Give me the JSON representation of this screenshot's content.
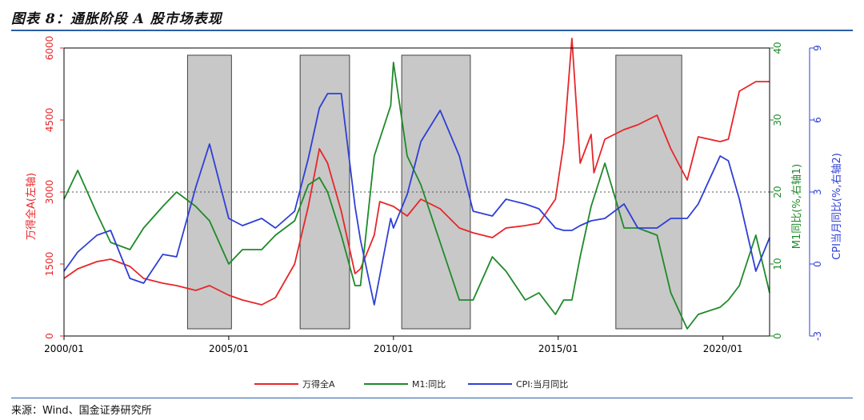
{
  "figure": {
    "title": "图表 8：通胀阶段 A 股市场表现",
    "source": "来源：Wind、国金证券研究所"
  },
  "chart_data": {
    "type": "line",
    "x_range": [
      "2000-01",
      "2021-06"
    ],
    "x_ticks": [
      "2000/01",
      "2005/01",
      "2010/01",
      "2015/01",
      "2020/01"
    ],
    "y_left": {
      "label": "万得全A(左轴)",
      "range": [
        0,
        6000
      ],
      "ticks": [
        0,
        1500,
        3000,
        4500,
        6000
      ],
      "color": "#e8262a"
    },
    "y_right1": {
      "label": "M1同比(%,右轴1)",
      "range": [
        0,
        40
      ],
      "ticks": [
        0,
        10,
        20,
        30,
        40
      ],
      "color": "#1f8a2a"
    },
    "y_right2": {
      "label": "CPI当月同比(%,右轴2)",
      "range": [
        -3,
        9
      ],
      "ticks": [
        -3,
        0,
        3,
        6,
        9
      ],
      "color": "#2f3fd6"
    },
    "reference_line": {
      "axis": "y_right1",
      "value": 20,
      "style": "dotted"
    },
    "shaded_periods": [
      [
        "2003-10",
        "2005-02"
      ],
      [
        "2007-03",
        "2008-09"
      ],
      [
        "2010-04",
        "2012-05"
      ],
      [
        "2016-10",
        "2018-10"
      ]
    ],
    "legend": {
      "position": "bottom-center",
      "entries": [
        "万得全A",
        "M1:同比",
        "CPI:当月同比"
      ]
    },
    "grid": false,
    "series": [
      {
        "name": "万得全A",
        "axis": "y_left",
        "color": "#e8262a",
        "points": [
          [
            "2000-01",
            1200
          ],
          [
            "2000-06",
            1400
          ],
          [
            "2001-01",
            1550
          ],
          [
            "2001-06",
            1600
          ],
          [
            "2002-01",
            1450
          ],
          [
            "2002-06",
            1200
          ],
          [
            "2003-01",
            1100
          ],
          [
            "2003-06",
            1050
          ],
          [
            "2004-01",
            950
          ],
          [
            "2004-06",
            1050
          ],
          [
            "2005-01",
            850
          ],
          [
            "2005-06",
            750
          ],
          [
            "2006-01",
            650
          ],
          [
            "2006-06",
            800
          ],
          [
            "2007-01",
            1500
          ],
          [
            "2007-06",
            2700
          ],
          [
            "2007-10",
            3900
          ],
          [
            "2008-01",
            3600
          ],
          [
            "2008-06",
            2600
          ],
          [
            "2008-11",
            1300
          ],
          [
            "2009-01",
            1400
          ],
          [
            "2009-06",
            2100
          ],
          [
            "2009-08",
            2800
          ],
          [
            "2010-01",
            2700
          ],
          [
            "2010-06",
            2500
          ],
          [
            "2010-11",
            2850
          ],
          [
            "2011-06",
            2650
          ],
          [
            "2012-01",
            2250
          ],
          [
            "2012-06",
            2150
          ],
          [
            "2013-01",
            2050
          ],
          [
            "2013-06",
            2250
          ],
          [
            "2014-01",
            2300
          ],
          [
            "2014-06",
            2350
          ],
          [
            "2014-12",
            2850
          ],
          [
            "2015-03",
            4000
          ],
          [
            "2015-06",
            6200
          ],
          [
            "2015-09",
            3600
          ],
          [
            "2016-01",
            4200
          ],
          [
            "2016-02",
            3400
          ],
          [
            "2016-06",
            4100
          ],
          [
            "2017-01",
            4300
          ],
          [
            "2017-06",
            4400
          ],
          [
            "2018-01",
            4600
          ],
          [
            "2018-06",
            3900
          ],
          [
            "2018-12",
            3250
          ],
          [
            "2019-04",
            4150
          ],
          [
            "2019-12",
            4050
          ],
          [
            "2020-03",
            4100
          ],
          [
            "2020-07",
            5100
          ],
          [
            "2021-01",
            5300
          ],
          [
            "2021-06",
            5300
          ]
        ]
      },
      {
        "name": "M1:同比",
        "axis": "y_right1",
        "color": "#1f8a2a",
        "points": [
          [
            "2000-01",
            19
          ],
          [
            "2000-06",
            23
          ],
          [
            "2001-01",
            17
          ],
          [
            "2001-06",
            13
          ],
          [
            "2002-01",
            12
          ],
          [
            "2002-06",
            15
          ],
          [
            "2003-01",
            18
          ],
          [
            "2003-06",
            20
          ],
          [
            "2004-01",
            18
          ],
          [
            "2004-06",
            16
          ],
          [
            "2005-01",
            10
          ],
          [
            "2005-06",
            12
          ],
          [
            "2006-01",
            12
          ],
          [
            "2006-06",
            14
          ],
          [
            "2007-01",
            16
          ],
          [
            "2007-06",
            21
          ],
          [
            "2007-10",
            22
          ],
          [
            "2008-01",
            20
          ],
          [
            "2008-06",
            14
          ],
          [
            "2008-11",
            7
          ],
          [
            "2009-01",
            7
          ],
          [
            "2009-06",
            25
          ],
          [
            "2009-12",
            32
          ],
          [
            "2010-01",
            38
          ],
          [
            "2010-06",
            25
          ],
          [
            "2010-11",
            21
          ],
          [
            "2011-06",
            13
          ],
          [
            "2012-01",
            5
          ],
          [
            "2012-06",
            5
          ],
          [
            "2013-01",
            11
          ],
          [
            "2013-06",
            9
          ],
          [
            "2014-01",
            5
          ],
          [
            "2014-06",
            6
          ],
          [
            "2014-12",
            3
          ],
          [
            "2015-03",
            5
          ],
          [
            "2015-06",
            5
          ],
          [
            "2015-09",
            11
          ],
          [
            "2016-01",
            18
          ],
          [
            "2016-06",
            24
          ],
          [
            "2017-01",
            15
          ],
          [
            "2017-06",
            15
          ],
          [
            "2018-01",
            14
          ],
          [
            "2018-06",
            6
          ],
          [
            "2018-12",
            1
          ],
          [
            "2019-04",
            3
          ],
          [
            "2019-12",
            4
          ],
          [
            "2020-03",
            5
          ],
          [
            "2020-07",
            7
          ],
          [
            "2021-01",
            14
          ],
          [
            "2021-06",
            6
          ]
        ]
      },
      {
        "name": "CPI:当月同比",
        "axis": "y_right2",
        "color": "#2f3fd6",
        "points": [
          [
            "2000-01",
            -0.3
          ],
          [
            "2000-06",
            0.5
          ],
          [
            "2001-01",
            1.2
          ],
          [
            "2001-06",
            1.4
          ],
          [
            "2002-01",
            -0.6
          ],
          [
            "2002-06",
            -0.8
          ],
          [
            "2003-01",
            0.4
          ],
          [
            "2003-06",
            0.3
          ],
          [
            "2004-01",
            3.2
          ],
          [
            "2004-06",
            5.0
          ],
          [
            "2005-01",
            1.9
          ],
          [
            "2005-06",
            1.6
          ],
          [
            "2006-01",
            1.9
          ],
          [
            "2006-06",
            1.5
          ],
          [
            "2007-01",
            2.2
          ],
          [
            "2007-06",
            4.4
          ],
          [
            "2007-10",
            6.5
          ],
          [
            "2008-01",
            7.1
          ],
          [
            "2008-06",
            7.1
          ],
          [
            "2008-11",
            2.4
          ],
          [
            "2009-01",
            1.0
          ],
          [
            "2009-06",
            -1.7
          ],
          [
            "2009-12",
            1.9
          ],
          [
            "2010-01",
            1.5
          ],
          [
            "2010-06",
            2.9
          ],
          [
            "2010-11",
            5.1
          ],
          [
            "2011-06",
            6.4
          ],
          [
            "2012-01",
            4.5
          ],
          [
            "2012-06",
            2.2
          ],
          [
            "2013-01",
            2.0
          ],
          [
            "2013-06",
            2.7
          ],
          [
            "2014-01",
            2.5
          ],
          [
            "2014-06",
            2.3
          ],
          [
            "2014-12",
            1.5
          ],
          [
            "2015-03",
            1.4
          ],
          [
            "2015-06",
            1.4
          ],
          [
            "2015-09",
            1.6
          ],
          [
            "2016-01",
            1.8
          ],
          [
            "2016-06",
            1.9
          ],
          [
            "2017-01",
            2.5
          ],
          [
            "2017-06",
            1.5
          ],
          [
            "2018-01",
            1.5
          ],
          [
            "2018-06",
            1.9
          ],
          [
            "2018-12",
            1.9
          ],
          [
            "2019-04",
            2.5
          ],
          [
            "2019-12",
            4.5
          ],
          [
            "2020-03",
            4.3
          ],
          [
            "2020-07",
            2.7
          ],
          [
            "2021-01",
            -0.3
          ],
          [
            "2021-06",
            1.1
          ]
        ]
      }
    ]
  }
}
